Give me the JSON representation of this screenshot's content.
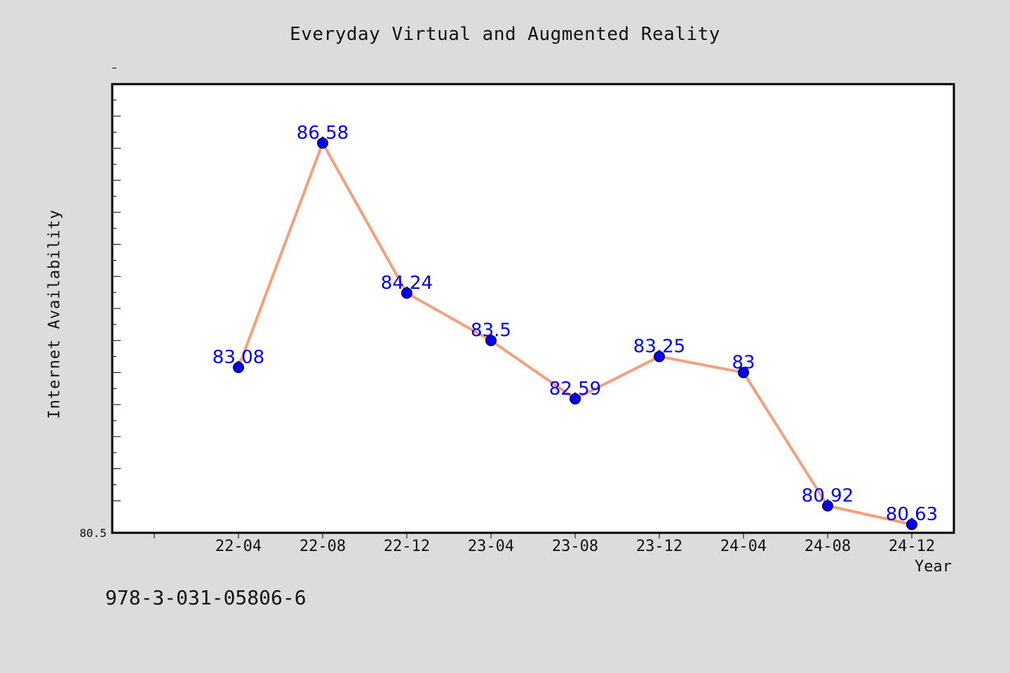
{
  "chart_data": {
    "type": "line",
    "title": "Everyday Virtual and Augmented Reality",
    "xlabel": "Year",
    "ylabel": "Internet Availability",
    "categories": [
      "22-04",
      "22-08",
      "22-12",
      "23-04",
      "23-08",
      "23-12",
      "24-04",
      "24-08",
      "24-12"
    ],
    "series": [
      {
        "values": [
          83.08,
          86.58,
          84.24,
          83.5,
          82.59,
          83.25,
          83,
          80.92,
          80.63
        ]
      }
    ],
    "data_labels": [
      "83.08",
      "86.58",
      "84.24",
      "83.5",
      "82.59",
      "83.25",
      "83",
      "80.92",
      "80.63"
    ],
    "ylim": [
      80.5,
      87.5
    ],
    "ytick_label": "80.5",
    "grid": false,
    "line_color": "#f4a07c",
    "marker_color": "#0000ee",
    "label_color": "#0000ee",
    "plot_background": "#ffffff",
    "page_background": "#dcdcdc"
  },
  "footer_text": "978-3-031-05806-6"
}
